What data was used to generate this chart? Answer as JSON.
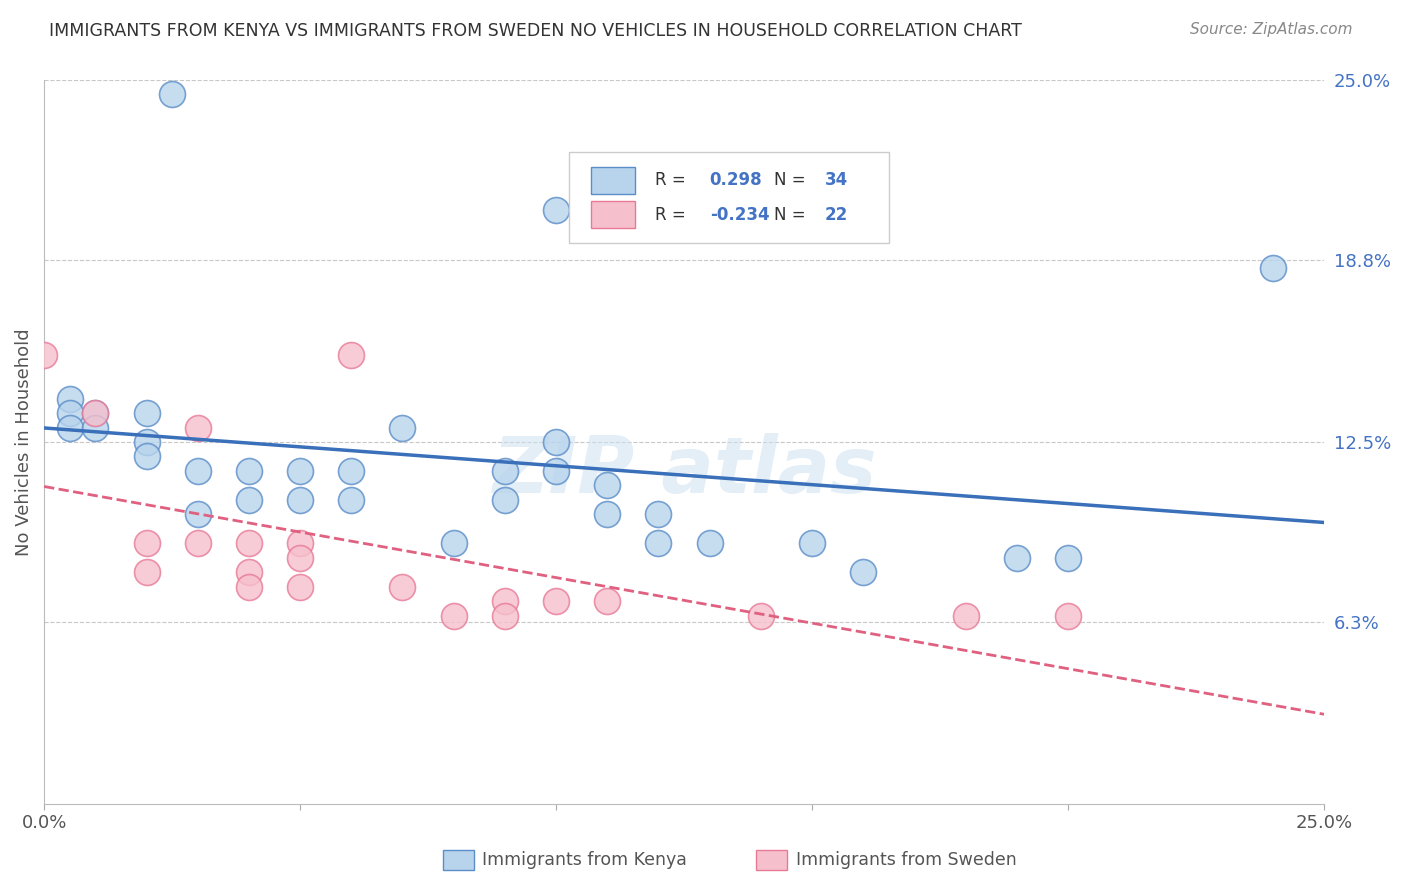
{
  "title": "IMMIGRANTS FROM KENYA VS IMMIGRANTS FROM SWEDEN NO VEHICLES IN HOUSEHOLD CORRELATION CHART",
  "source": "Source: ZipAtlas.com",
  "ylabel": "No Vehicles in Household",
  "xlim": [
    0.0,
    0.25
  ],
  "ylim": [
    0.0,
    0.25
  ],
  "y_tick_labels_right": [
    "25.0%",
    "18.8%",
    "12.5%",
    "6.3%"
  ],
  "y_tick_positions_right": [
    0.25,
    0.188,
    0.125,
    0.063
  ],
  "legend_labels": [
    "Immigrants from Kenya",
    "Immigrants from Sweden"
  ],
  "legend_r": [
    0.298,
    -0.234
  ],
  "legend_n": [
    34,
    22
  ],
  "kenya_color": "#b8d4ec",
  "sweden_color": "#f5c0cc",
  "kenya_edge_color": "#5b8dc8",
  "sweden_edge_color": "#e87a98",
  "kenya_line_color": "#3a6fba",
  "sweden_line_color": "#e06080",
  "background_color": "#ffffff",
  "grid_color": "#c8c8c8",
  "kenya_points_x": [
    0.025,
    0.1,
    0.005,
    0.005,
    0.005,
    0.01,
    0.01,
    0.02,
    0.02,
    0.02,
    0.03,
    0.03,
    0.04,
    0.04,
    0.05,
    0.05,
    0.06,
    0.06,
    0.07,
    0.08,
    0.09,
    0.09,
    0.1,
    0.1,
    0.11,
    0.11,
    0.12,
    0.12,
    0.13,
    0.15,
    0.16,
    0.19,
    0.2,
    0.24
  ],
  "kenya_points_y": [
    0.245,
    0.205,
    0.14,
    0.135,
    0.13,
    0.135,
    0.13,
    0.135,
    0.125,
    0.12,
    0.115,
    0.1,
    0.115,
    0.105,
    0.115,
    0.105,
    0.115,
    0.105,
    0.13,
    0.09,
    0.115,
    0.105,
    0.115,
    0.125,
    0.1,
    0.11,
    0.1,
    0.09,
    0.09,
    0.09,
    0.08,
    0.085,
    0.085,
    0.185
  ],
  "sweden_points_x": [
    0.0,
    0.01,
    0.02,
    0.02,
    0.03,
    0.03,
    0.04,
    0.04,
    0.04,
    0.05,
    0.05,
    0.05,
    0.06,
    0.07,
    0.08,
    0.09,
    0.09,
    0.1,
    0.11,
    0.14,
    0.18,
    0.2
  ],
  "sweden_points_y": [
    0.155,
    0.135,
    0.09,
    0.08,
    0.13,
    0.09,
    0.09,
    0.08,
    0.075,
    0.09,
    0.085,
    0.075,
    0.155,
    0.075,
    0.065,
    0.07,
    0.065,
    0.07,
    0.07,
    0.065,
    0.065,
    0.065
  ]
}
